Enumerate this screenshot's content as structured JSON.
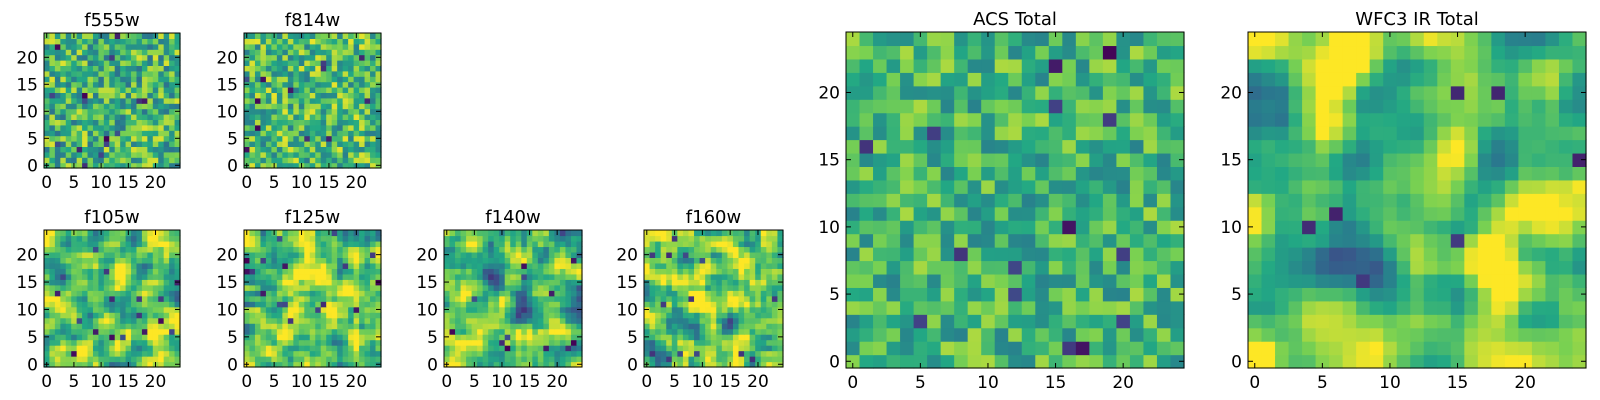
{
  "chart_data": {
    "type": "heatmap",
    "colormap": "viridis",
    "colormap_stops": [
      "#440154",
      "#414487",
      "#2a788e",
      "#22a884",
      "#7ad151",
      "#fde725"
    ],
    "grid_size": [
      25,
      25
    ],
    "panels": [
      {
        "title": "f555w",
        "xticks": [
          "0",
          "5",
          "10",
          "15",
          "20"
        ],
        "yticks": [
          "0",
          "5",
          "10",
          "15",
          "20"
        ],
        "smoothness": 0,
        "mean_level": 0.66,
        "spread": 0.17
      },
      {
        "title": "f814w",
        "xticks": [
          "0",
          "5",
          "10",
          "15",
          "20"
        ],
        "yticks": [
          "0",
          "5",
          "10",
          "15",
          "20"
        ],
        "smoothness": 0,
        "mean_level": 0.68,
        "spread": 0.16
      },
      {
        "title": "f105w",
        "xticks": [
          "0",
          "5",
          "10",
          "15",
          "20"
        ],
        "yticks": [
          "0",
          "5",
          "10",
          "15",
          "20"
        ],
        "smoothness": 1,
        "mean_level": 0.7,
        "spread": 0.17
      },
      {
        "title": "f125w",
        "xticks": [
          "0",
          "5",
          "10",
          "15",
          "20"
        ],
        "yticks": [
          "0",
          "5",
          "10",
          "15",
          "20"
        ],
        "smoothness": 1,
        "mean_level": 0.72,
        "spread": 0.16
      },
      {
        "title": "f140w",
        "xticks": [
          "0",
          "5",
          "10",
          "15",
          "20"
        ],
        "yticks": [
          "0",
          "5",
          "10",
          "15",
          "20"
        ],
        "smoothness": 1,
        "mean_level": 0.66,
        "spread": 0.18
      },
      {
        "title": "f160w",
        "xticks": [
          "0",
          "5",
          "10",
          "15",
          "20"
        ],
        "yticks": [
          "0",
          "5",
          "10",
          "15",
          "20"
        ],
        "smoothness": 1,
        "mean_level": 0.72,
        "spread": 0.17
      },
      {
        "title": "ACS Total",
        "xticks": [
          "0",
          "5",
          "10",
          "15",
          "20"
        ],
        "yticks": [
          "0",
          "5",
          "10",
          "15",
          "20"
        ],
        "smoothness": 0,
        "mean_level": 0.66,
        "spread": 0.13
      },
      {
        "title": "WFC3 IR Total",
        "xticks": [
          "0",
          "5",
          "10",
          "15",
          "20"
        ],
        "yticks": [
          "0",
          "5",
          "10",
          "15",
          "20"
        ],
        "smoothness": 2,
        "mean_level": 0.7,
        "spread": 0.18
      }
    ]
  }
}
